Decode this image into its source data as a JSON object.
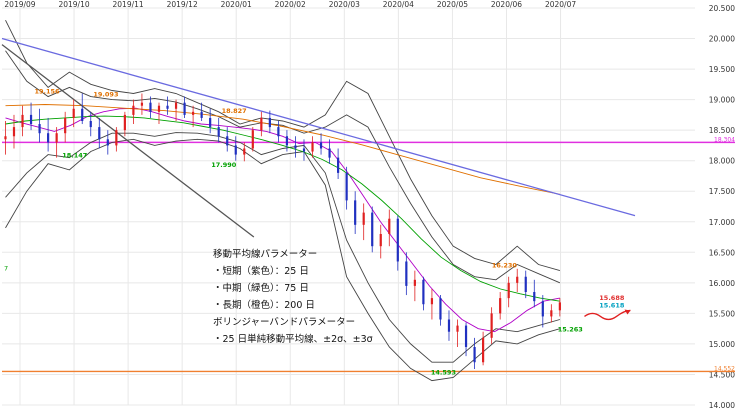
{
  "chart_data": {
    "type": "candlestick",
    "x_ticks": [
      "2019/09",
      "2019/10",
      "2019/11",
      "2019/12",
      "2020/01",
      "2020/02",
      "2020/03",
      "2020/04",
      "2020/05",
      "2020/06",
      "2020/07"
    ],
    "y_ticks": [
      "20.500",
      "20.000",
      "19.500",
      "19.000",
      "18.500",
      "18.000",
      "17.500",
      "17.000",
      "16.500",
      "16.000",
      "15.500",
      "15.000",
      "14.500",
      "14.000"
    ],
    "ylim": [
      14.0,
      20.5
    ],
    "grid": true,
    "ohlc": [
      [
        18.35,
        18.65,
        18.1,
        18.4
      ],
      [
        18.4,
        18.75,
        18.2,
        18.55
      ],
      [
        18.55,
        18.9,
        18.4,
        18.75
      ],
      [
        18.75,
        18.95,
        18.5,
        18.6
      ],
      [
        18.6,
        18.85,
        18.3,
        18.45
      ],
      [
        18.45,
        18.7,
        18.15,
        18.3
      ],
      [
        18.3,
        18.55,
        18.05,
        18.45
      ],
      [
        18.45,
        18.8,
        18.3,
        18.7
      ],
      [
        18.7,
        19.0,
        18.55,
        18.85
      ],
      [
        18.85,
        19.1,
        18.6,
        18.65
      ],
      [
        18.65,
        18.8,
        18.4,
        18.55
      ],
      [
        18.55,
        18.7,
        18.2,
        18.35
      ],
      [
        18.35,
        18.5,
        18.1,
        18.25
      ],
      [
        18.25,
        18.55,
        18.15,
        18.5
      ],
      [
        18.5,
        18.8,
        18.4,
        18.75
      ],
      [
        18.75,
        19.0,
        18.6,
        18.9
      ],
      [
        18.9,
        19.1,
        18.75,
        18.95
      ],
      [
        18.95,
        19.05,
        18.7,
        18.8
      ],
      [
        18.8,
        18.95,
        18.6,
        18.9
      ],
      [
        18.9,
        19.05,
        18.75,
        18.85
      ],
      [
        18.85,
        19.0,
        18.65,
        18.95
      ],
      [
        18.95,
        19.05,
        18.7,
        18.75
      ],
      [
        18.75,
        18.9,
        18.55,
        18.8
      ],
      [
        18.8,
        18.95,
        18.65,
        18.7
      ],
      [
        18.7,
        18.85,
        18.45,
        18.55
      ],
      [
        18.55,
        18.7,
        18.3,
        18.4
      ],
      [
        18.4,
        18.55,
        18.15,
        18.25
      ],
      [
        18.25,
        18.4,
        18.0,
        18.1
      ],
      [
        18.1,
        18.3,
        17.99,
        18.2
      ],
      [
        18.2,
        18.55,
        18.15,
        18.5
      ],
      [
        18.5,
        18.8,
        18.4,
        18.7
      ],
      [
        18.7,
        18.82,
        18.45,
        18.55
      ],
      [
        18.55,
        18.65,
        18.3,
        18.4
      ],
      [
        18.4,
        18.5,
        18.15,
        18.25
      ],
      [
        18.25,
        18.4,
        18.05,
        18.2
      ],
      [
        18.2,
        18.35,
        18.0,
        18.15
      ],
      [
        18.15,
        18.4,
        18.05,
        18.3
      ],
      [
        18.3,
        18.45,
        18.1,
        18.2
      ],
      [
        18.2,
        18.35,
        17.95,
        18.05
      ],
      [
        18.05,
        18.2,
        17.7,
        17.8
      ],
      [
        17.8,
        17.9,
        17.2,
        17.35
      ],
      [
        17.35,
        17.5,
        16.8,
        16.95
      ],
      [
        16.95,
        17.3,
        16.7,
        17.15
      ],
      [
        17.15,
        17.25,
        16.5,
        16.6
      ],
      [
        16.6,
        16.95,
        16.4,
        16.8
      ],
      [
        16.8,
        17.2,
        16.6,
        17.05
      ],
      [
        17.05,
        17.1,
        16.2,
        16.35
      ],
      [
        16.35,
        16.5,
        15.8,
        15.95
      ],
      [
        15.95,
        16.2,
        15.7,
        16.05
      ],
      [
        16.05,
        16.1,
        15.55,
        15.65
      ],
      [
        15.65,
        15.9,
        15.4,
        15.75
      ],
      [
        15.75,
        15.8,
        15.3,
        15.4
      ],
      [
        15.4,
        15.55,
        15.05,
        15.2
      ],
      [
        15.2,
        15.4,
        14.95,
        15.3
      ],
      [
        15.3,
        15.35,
        14.8,
        14.95
      ],
      [
        14.95,
        15.1,
        14.59,
        14.7
      ],
      [
        14.7,
        15.2,
        14.65,
        15.1
      ],
      [
        15.1,
        15.6,
        15.0,
        15.5
      ],
      [
        15.5,
        15.85,
        15.4,
        15.75
      ],
      [
        15.75,
        16.1,
        15.6,
        16.0
      ],
      [
        16.0,
        16.23,
        15.85,
        16.1
      ],
      [
        16.1,
        16.2,
        15.75,
        15.85
      ],
      [
        15.85,
        16.05,
        15.6,
        15.7
      ],
      [
        15.7,
        15.8,
        15.27,
        15.45
      ],
      [
        15.45,
        15.65,
        15.35,
        15.55
      ],
      [
        15.55,
        15.75,
        15.45,
        15.68
      ]
    ],
    "series": [
      {
        "name": "短期（紫色）：25日",
        "color": "#b000c8",
        "values": [
          18.7,
          18.62,
          18.55,
          18.48,
          18.58,
          18.72,
          18.8,
          18.85,
          18.86,
          18.8,
          18.72,
          18.65,
          18.6,
          18.58,
          18.55,
          18.52,
          18.48,
          18.4,
          18.28,
          18.3,
          18.15,
          17.8,
          17.4,
          17.0,
          16.65,
          16.3,
          15.95,
          15.65,
          15.4,
          15.25,
          15.2,
          15.35,
          15.55,
          15.7,
          15.75
        ]
      },
      {
        "name": "中期（緑色）：75日",
        "color": "#00a000",
        "values": [
          18.6,
          18.65,
          18.68,
          18.7,
          18.72,
          18.73,
          18.72,
          18.7,
          18.66,
          18.62,
          18.56,
          18.5,
          18.42,
          18.34,
          18.25,
          18.15,
          18.02,
          17.85,
          17.62,
          17.35,
          17.05,
          16.72,
          16.42,
          16.2,
          16.02,
          15.9,
          15.82,
          15.75,
          15.7
        ]
      },
      {
        "name": "長期（橙色）：200日",
        "color": "#e07000",
        "values": [
          18.9,
          18.92,
          18.9,
          18.86,
          18.82,
          18.76,
          18.68,
          18.56,
          18.42,
          18.26,
          18.08,
          17.9,
          17.72,
          17.58,
          17.45
        ]
      },
      {
        "name": "+3σ",
        "color": "#444444",
        "values": [
          20.3,
          19.6,
          19.2,
          19.45,
          19.25,
          19.15,
          19.1,
          19.18,
          19.1,
          18.95,
          18.8,
          18.6,
          18.7,
          18.65,
          18.55,
          18.75,
          19.3,
          19.1,
          18.4,
          17.7,
          17.1,
          16.6,
          16.4,
          16.3,
          16.6,
          16.3,
          16.2
        ]
      },
      {
        "name": "+2σ",
        "color": "#444444",
        "values": [
          19.8,
          19.3,
          19.05,
          19.2,
          19.05,
          19.0,
          18.98,
          19.02,
          18.96,
          18.85,
          18.72,
          18.55,
          18.62,
          18.58,
          18.45,
          18.55,
          18.75,
          18.55,
          17.9,
          17.3,
          16.75,
          16.3,
          16.1,
          16.05,
          16.3,
          16.15,
          16.0
        ]
      },
      {
        "name": "-2σ",
        "color": "#444444",
        "values": [
          17.4,
          17.8,
          18.1,
          18.05,
          18.3,
          18.45,
          18.45,
          18.4,
          18.46,
          18.45,
          18.4,
          18.3,
          18.1,
          18.2,
          18.25,
          17.8,
          16.7,
          16.0,
          15.4,
          15.0,
          14.7,
          14.7,
          15.0,
          15.25,
          15.2,
          15.3,
          15.4
        ]
      },
      {
        "name": "-3σ",
        "color": "#444444",
        "values": [
          16.9,
          17.5,
          17.95,
          17.85,
          18.15,
          18.3,
          18.35,
          18.25,
          18.32,
          18.35,
          18.32,
          18.2,
          17.95,
          18.1,
          18.15,
          17.6,
          16.1,
          15.5,
          14.95,
          14.6,
          14.4,
          14.45,
          14.75,
          15.05,
          15.0,
          15.15,
          15.25
        ]
      }
    ],
    "trendlines": [
      {
        "name": "blue-downtrend",
        "color": "#6a6ae0",
        "from": [
          0,
          20.0
        ],
        "to": [
          1,
          17.1
        ]
      },
      {
        "name": "gray-downtrend",
        "color": "#555555",
        "from": [
          0,
          19.9
        ],
        "to": [
          0.45,
          16.75
        ]
      }
    ],
    "hlines": [
      {
        "name": "magenta-resistance",
        "color": "#e030e0",
        "value": 18.3,
        "label": "18.304"
      },
      {
        "name": "orange-support",
        "color": "#f08030",
        "value": 14.55,
        "label": "14.552"
      }
    ],
    "annotations": [
      {
        "text": "19.156",
        "color": "#e07000",
        "x": 0.065,
        "y": 19.1
      },
      {
        "text": "19.093",
        "color": "#e07000",
        "x": 0.15,
        "y": 19.05
      },
      {
        "text": "18.827",
        "color": "#e07000",
        "x": 0.335,
        "y": 18.78
      },
      {
        "text": "18.147",
        "color": "#00a000",
        "x": 0.105,
        "y": 18.05
      },
      {
        "text": "17.990",
        "color": "#00a000",
        "x": 0.32,
        "y": 17.9
      },
      {
        "text": "16.230",
        "color": "#e07000",
        "x": 0.725,
        "y": 16.25
      },
      {
        "text": "15.263",
        "color": "#00a000",
        "x": 0.82,
        "y": 15.2
      },
      {
        "text": "14.593",
        "color": "#00a000",
        "x": 0.637,
        "y": 14.5
      },
      {
        "text": "15.688",
        "color": "#e03030",
        "x": 0.88,
        "y": 15.72
      },
      {
        "text": "15.618",
        "color": "#00a0c0",
        "x": 0.88,
        "y": 15.6
      }
    ],
    "legend_text": {
      "title": "移動平均線パラメーター",
      "short": "・短期（紫色）：25 日",
      "mid": "・中期（緑色）：75 日",
      "long": "・長期（橙色）：200 日",
      "bb_title": "ボリンジャーバンドパラメーター",
      "bb_detail": "・25 日単純移動平均線、±2σ、±3σ"
    },
    "left_edge_label": "7",
    "colors": {
      "up": "#e02020",
      "down": "#2030c0",
      "grid": "#e8e8e8",
      "axis_text": "#333333",
      "arrow": "#e02020"
    }
  }
}
